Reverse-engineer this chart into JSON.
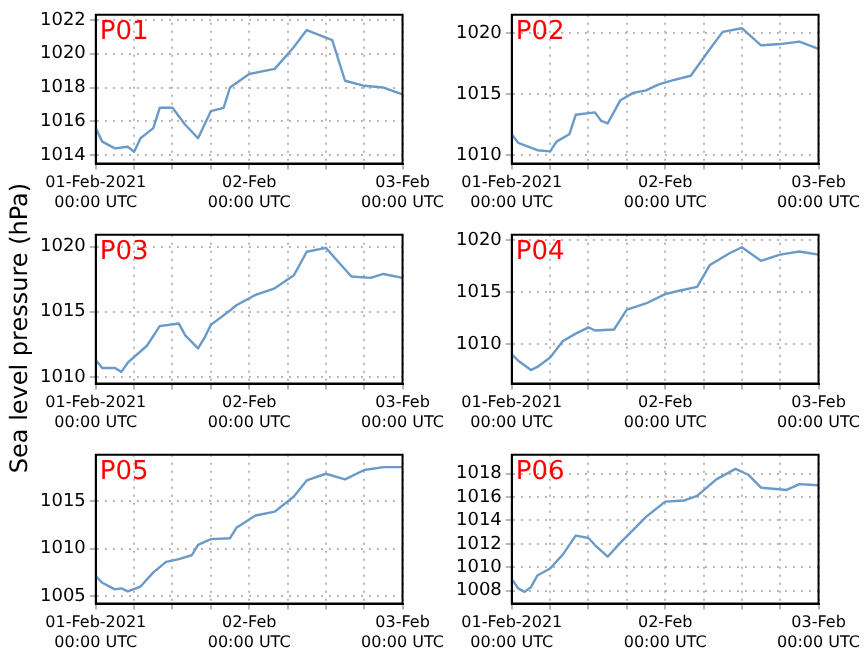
{
  "chart_data": [
    {
      "type": "line",
      "title": "P01",
      "xlim": [
        "2021-02-01T00:00",
        "2021-02-03T00:00"
      ],
      "ylim": [
        1013.5,
        1022.3
      ],
      "yticks": [
        1014,
        1016,
        1018,
        1020,
        1022
      ],
      "xticks": [
        {
          "value": "2021-02-01T00:00",
          "label": "01-Feb-2021\n00:00 UTC"
        },
        {
          "value": "2021-02-01T06:00",
          "label": null
        },
        {
          "value": "2021-02-01T12:00",
          "label": null
        },
        {
          "value": "2021-02-01T18:00",
          "label": null
        },
        {
          "value": "2021-02-02T00:00",
          "label": "02-Feb\n00:00 UTC"
        },
        {
          "value": "2021-02-02T06:00",
          "label": null
        },
        {
          "value": "2021-02-02T12:00",
          "label": null
        },
        {
          "value": "2021-02-02T18:00",
          "label": null
        },
        {
          "value": "2021-02-03T00:00",
          "label": "03-Feb\n00:00 UTC"
        }
      ],
      "grid": true,
      "legend": false,
      "marker": "none",
      "line_style": "solid",
      "series": [
        {
          "color": "#6a9ac8",
          "x": [
            "2021-02-01T00:00",
            "2021-02-01T01:00",
            "2021-02-01T03:00",
            "2021-02-01T05:00",
            "2021-02-01T06:00",
            "2021-02-01T07:00",
            "2021-02-01T09:00",
            "2021-02-01T10:00",
            "2021-02-01T12:00",
            "2021-02-01T14:00",
            "2021-02-01T16:00",
            "2021-02-01T18:00",
            "2021-02-01T20:00",
            "2021-02-01T21:00",
            "2021-02-02T00:00",
            "2021-02-02T04:00",
            "2021-02-02T07:00",
            "2021-02-02T09:00",
            "2021-02-02T13:00",
            "2021-02-02T15:00",
            "2021-02-02T18:00",
            "2021-02-02T21:00",
            "2021-02-03T00:00"
          ],
          "values": [
            1015.6,
            1014.8,
            1014.4,
            1014.5,
            1014.2,
            1015.0,
            1015.6,
            1016.8,
            1016.8,
            1015.8,
            1015.0,
            1016.6,
            1016.8,
            1018.0,
            1018.8,
            1019.1,
            1020.4,
            1021.4,
            1020.8,
            1018.4,
            1018.1,
            1018.0,
            1017.6
          ]
        }
      ]
    },
    {
      "type": "line",
      "title": "P02",
      "xlim": [
        "2021-02-01T00:00",
        "2021-02-03T00:00"
      ],
      "ylim": [
        1009.3,
        1021.5
      ],
      "yticks": [
        1010,
        1015,
        1020
      ],
      "xticks": [
        {
          "value": "2021-02-01T00:00",
          "label": "01-Feb-2021\n00:00 UTC"
        },
        {
          "value": "2021-02-01T06:00",
          "label": null
        },
        {
          "value": "2021-02-01T12:00",
          "label": null
        },
        {
          "value": "2021-02-01T18:00",
          "label": null
        },
        {
          "value": "2021-02-02T00:00",
          "label": "02-Feb\n00:00 UTC"
        },
        {
          "value": "2021-02-02T06:00",
          "label": null
        },
        {
          "value": "2021-02-02T12:00",
          "label": null
        },
        {
          "value": "2021-02-02T18:00",
          "label": null
        },
        {
          "value": "2021-02-03T00:00",
          "label": "03-Feb\n00:00 UTC"
        }
      ],
      "grid": true,
      "legend": false,
      "marker": "none",
      "line_style": "solid",
      "series": [
        {
          "color": "#6a9ac8",
          "x": [
            "2021-02-01T00:00",
            "2021-02-01T01:00",
            "2021-02-01T04:00",
            "2021-02-01T06:00",
            "2021-02-01T07:00",
            "2021-02-01T09:00",
            "2021-02-01T10:00",
            "2021-02-01T13:00",
            "2021-02-01T14:00",
            "2021-02-01T15:00",
            "2021-02-01T17:00",
            "2021-02-01T19:00",
            "2021-02-01T21:00",
            "2021-02-01T23:00",
            "2021-02-02T01:00",
            "2021-02-02T04:00",
            "2021-02-02T07:00",
            "2021-02-02T09:00",
            "2021-02-02T12:00",
            "2021-02-02T15:00",
            "2021-02-02T18:00",
            "2021-02-02T21:00",
            "2021-02-03T00:00"
          ],
          "values": [
            1011.7,
            1011.0,
            1010.4,
            1010.3,
            1011.1,
            1011.7,
            1013.3,
            1013.5,
            1012.8,
            1012.6,
            1014.5,
            1015.1,
            1015.3,
            1015.8,
            1016.1,
            1016.5,
            1018.7,
            1020.1,
            1020.4,
            1019.0,
            1019.1,
            1019.3,
            1018.7
          ]
        }
      ]
    },
    {
      "type": "line",
      "title": "P03",
      "ylabel": "Sea level pressure (hPa)",
      "xlim": [
        "2021-02-01T00:00",
        "2021-02-03T00:00"
      ],
      "ylim": [
        1009.5,
        1020.9
      ],
      "yticks": [
        1010,
        1015,
        1020
      ],
      "xticks": [
        {
          "value": "2021-02-01T00:00",
          "label": "01-Feb-2021\n00:00 UTC"
        },
        {
          "value": "2021-02-01T06:00",
          "label": null
        },
        {
          "value": "2021-02-01T12:00",
          "label": null
        },
        {
          "value": "2021-02-01T18:00",
          "label": null
        },
        {
          "value": "2021-02-02T00:00",
          "label": "02-Feb\n00:00 UTC"
        },
        {
          "value": "2021-02-02T06:00",
          "label": null
        },
        {
          "value": "2021-02-02T12:00",
          "label": null
        },
        {
          "value": "2021-02-02T18:00",
          "label": null
        },
        {
          "value": "2021-02-03T00:00",
          "label": "03-Feb\n00:00 UTC"
        }
      ],
      "grid": true,
      "legend": false,
      "marker": "none",
      "line_style": "solid",
      "series": [
        {
          "color": "#6a9ac8",
          "x": [
            "2021-02-01T00:00",
            "2021-02-01T01:00",
            "2021-02-01T03:00",
            "2021-02-01T04:00",
            "2021-02-01T05:00",
            "2021-02-01T08:00",
            "2021-02-01T10:00",
            "2021-02-01T13:00",
            "2021-02-01T14:00",
            "2021-02-01T16:00",
            "2021-02-01T17:00",
            "2021-02-01T18:00",
            "2021-02-01T21:00",
            "2021-02-01T22:00",
            "2021-02-02T01:00",
            "2021-02-02T04:00",
            "2021-02-02T07:00",
            "2021-02-02T09:00",
            "2021-02-02T12:00",
            "2021-02-02T14:00",
            "2021-02-02T16:00",
            "2021-02-02T19:00",
            "2021-02-02T21:00",
            "2021-02-03T00:00"
          ],
          "values": [
            1011.3,
            1010.7,
            1010.7,
            1010.4,
            1011.1,
            1012.4,
            1013.9,
            1014.1,
            1013.2,
            1012.2,
            1013.0,
            1014.0,
            1015.1,
            1015.5,
            1016.3,
            1016.8,
            1017.8,
            1019.6,
            1019.9,
            1018.8,
            1017.7,
            1017.6,
            1017.9,
            1017.6
          ]
        }
      ]
    },
    {
      "type": "line",
      "title": "P04",
      "xlim": [
        "2021-02-01T00:00",
        "2021-02-03T00:00"
      ],
      "ylim": [
        1006.2,
        1020.5
      ],
      "yticks": [
        1010,
        1015,
        1020
      ],
      "xticks": [
        {
          "value": "2021-02-01T00:00",
          "label": "01-Feb-2021\n00:00 UTC"
        },
        {
          "value": "2021-02-01T06:00",
          "label": null
        },
        {
          "value": "2021-02-01T12:00",
          "label": null
        },
        {
          "value": "2021-02-01T18:00",
          "label": null
        },
        {
          "value": "2021-02-02T00:00",
          "label": "02-Feb\n00:00 UTC"
        },
        {
          "value": "2021-02-02T06:00",
          "label": null
        },
        {
          "value": "2021-02-02T12:00",
          "label": null
        },
        {
          "value": "2021-02-02T18:00",
          "label": null
        },
        {
          "value": "2021-02-03T00:00",
          "label": "03-Feb\n00:00 UTC"
        }
      ],
      "grid": true,
      "legend": false,
      "marker": "none",
      "line_style": "solid",
      "series": [
        {
          "color": "#6a9ac8",
          "x": [
            "2021-02-01T00:00",
            "2021-02-01T01:00",
            "2021-02-01T03:00",
            "2021-02-01T04:00",
            "2021-02-01T06:00",
            "2021-02-01T08:00",
            "2021-02-01T10:00",
            "2021-02-01T12:00",
            "2021-02-01T13:00",
            "2021-02-01T16:00",
            "2021-02-01T18:00",
            "2021-02-01T21:00",
            "2021-02-02T00:00",
            "2021-02-02T02:00",
            "2021-02-02T05:00",
            "2021-02-02T07:00",
            "2021-02-02T10:00",
            "2021-02-02T12:00",
            "2021-02-02T15:00",
            "2021-02-02T18:00",
            "2021-02-02T21:00",
            "2021-02-03T00:00"
          ],
          "values": [
            1009.0,
            1008.4,
            1007.5,
            1007.8,
            1008.7,
            1010.3,
            1011.0,
            1011.6,
            1011.3,
            1011.4,
            1013.3,
            1013.9,
            1014.8,
            1015.1,
            1015.5,
            1017.6,
            1018.7,
            1019.3,
            1018.0,
            1018.6,
            1018.9,
            1018.6
          ]
        }
      ]
    },
    {
      "type": "line",
      "title": "P05",
      "xlim": [
        "2021-02-01T00:00",
        "2021-02-03T00:00"
      ],
      "ylim": [
        1004.2,
        1019.9
      ],
      "yticks": [
        1005,
        1010,
        1015
      ],
      "xticks": [
        {
          "value": "2021-02-01T00:00",
          "label": "01-Feb-2021\n00:00 UTC"
        },
        {
          "value": "2021-02-01T06:00",
          "label": null
        },
        {
          "value": "2021-02-01T12:00",
          "label": null
        },
        {
          "value": "2021-02-01T18:00",
          "label": null
        },
        {
          "value": "2021-02-02T00:00",
          "label": "02-Feb\n00:00 UTC"
        },
        {
          "value": "2021-02-02T06:00",
          "label": null
        },
        {
          "value": "2021-02-02T12:00",
          "label": null
        },
        {
          "value": "2021-02-02T18:00",
          "label": null
        },
        {
          "value": "2021-02-03T00:00",
          "label": "03-Feb\n00:00 UTC"
        }
      ],
      "grid": true,
      "legend": false,
      "marker": "none",
      "line_style": "solid",
      "series": [
        {
          "color": "#6a9ac8",
          "x": [
            "2021-02-01T00:00",
            "2021-02-01T01:00",
            "2021-02-01T03:00",
            "2021-02-01T04:00",
            "2021-02-01T05:00",
            "2021-02-01T07:00",
            "2021-02-01T09:00",
            "2021-02-01T11:00",
            "2021-02-01T13:00",
            "2021-02-01T15:00",
            "2021-02-01T16:00",
            "2021-02-01T18:00",
            "2021-02-01T21:00",
            "2021-02-01T22:00",
            "2021-02-02T01:00",
            "2021-02-02T04:00",
            "2021-02-02T07:00",
            "2021-02-02T09:00",
            "2021-02-02T12:00",
            "2021-02-02T15:00",
            "2021-02-02T18:00",
            "2021-02-02T21:00",
            "2021-02-03T00:00"
          ],
          "values": [
            1007.1,
            1006.4,
            1005.7,
            1005.8,
            1005.5,
            1006.0,
            1007.5,
            1008.6,
            1008.9,
            1009.3,
            1010.4,
            1011.0,
            1011.1,
            1012.2,
            1013.5,
            1013.9,
            1015.5,
            1017.2,
            1017.9,
            1017.3,
            1018.3,
            1018.6,
            1018.6
          ]
        }
      ]
    },
    {
      "type": "line",
      "title": "P06",
      "xlim": [
        "2021-02-01T00:00",
        "2021-02-03T00:00"
      ],
      "ylim": [
        1006.9,
        1019.6
      ],
      "yticks": [
        1008,
        1010,
        1012,
        1014,
        1016,
        1018
      ],
      "xticks": [
        {
          "value": "2021-02-01T00:00",
          "label": "01-Feb-2021\n00:00 UTC"
        },
        {
          "value": "2021-02-01T06:00",
          "label": null
        },
        {
          "value": "2021-02-01T12:00",
          "label": null
        },
        {
          "value": "2021-02-01T18:00",
          "label": null
        },
        {
          "value": "2021-02-02T00:00",
          "label": "02-Feb\n00:00 UTC"
        },
        {
          "value": "2021-02-02T06:00",
          "label": null
        },
        {
          "value": "2021-02-02T12:00",
          "label": null
        },
        {
          "value": "2021-02-02T18:00",
          "label": null
        },
        {
          "value": "2021-02-03T00:00",
          "label": "03-Feb\n00:00 UTC"
        }
      ],
      "grid": true,
      "legend": false,
      "marker": "none",
      "line_style": "solid",
      "series": [
        {
          "color": "#6a9ac8",
          "x": [
            "2021-02-01T00:00",
            "2021-02-01T01:00",
            "2021-02-01T02:00",
            "2021-02-01T03:00",
            "2021-02-01T04:00",
            "2021-02-01T06:00",
            "2021-02-01T08:00",
            "2021-02-01T10:00",
            "2021-02-01T12:00",
            "2021-02-01T13:00",
            "2021-02-01T15:00",
            "2021-02-01T17:00",
            "2021-02-01T19:00",
            "2021-02-01T21:00",
            "2021-02-02T00:00",
            "2021-02-02T03:00",
            "2021-02-02T05:00",
            "2021-02-02T08:00",
            "2021-02-02T11:00",
            "2021-02-02T13:00",
            "2021-02-02T15:00",
            "2021-02-02T19:00",
            "2021-02-02T21:00",
            "2021-02-03T00:00"
          ],
          "values": [
            1009.0,
            1008.2,
            1007.9,
            1008.3,
            1009.3,
            1009.9,
            1011.1,
            1012.7,
            1012.5,
            1011.9,
            1010.9,
            1012.1,
            1013.2,
            1014.3,
            1015.6,
            1015.7,
            1016.1,
            1017.5,
            1018.4,
            1017.9,
            1016.8,
            1016.6,
            1017.1,
            1017.0
          ]
        }
      ]
    }
  ]
}
